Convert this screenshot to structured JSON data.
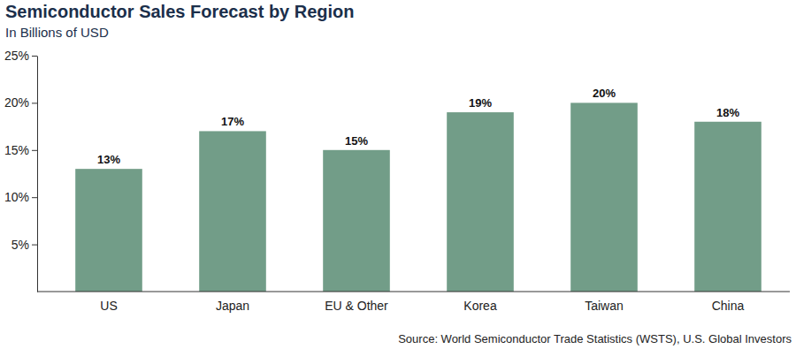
{
  "chart_data": {
    "type": "bar",
    "title": "Semiconductor Sales Forecast by Region",
    "subtitle": "In Billions of USD",
    "source": "Source: World Semiconductor Trade Statistics (WSTS), U.S. Global Investors",
    "categories": [
      "US",
      "Japan",
      "EU & Other",
      "Korea",
      "Taiwan",
      "China"
    ],
    "values": [
      13,
      17,
      15,
      19,
      20,
      18
    ],
    "value_labels": [
      "13%",
      "17%",
      "15%",
      "19%",
      "20%",
      "18%"
    ],
    "data_labels": true,
    "color": "#729d88",
    "ylim": [
      0,
      25
    ],
    "yticks": [
      {
        "value": 5,
        "label": "5%"
      },
      {
        "value": 10,
        "label": "10%"
      },
      {
        "value": 15,
        "label": "15%"
      },
      {
        "value": 20,
        "label": "20%"
      },
      {
        "value": 25,
        "label": "25%"
      }
    ],
    "grid": false
  }
}
